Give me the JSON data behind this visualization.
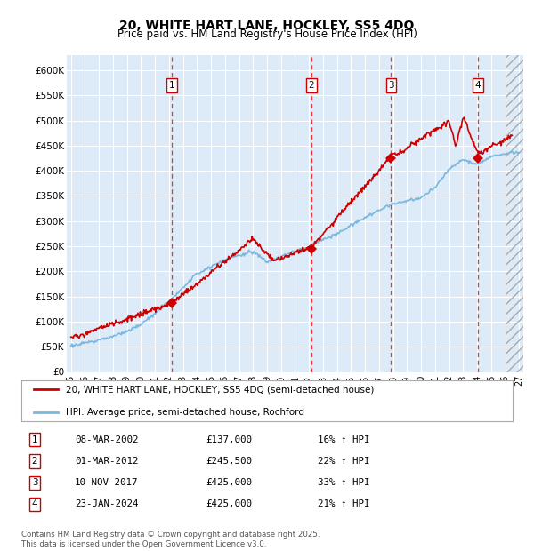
{
  "title": "20, WHITE HART LANE, HOCKLEY, SS5 4DQ",
  "subtitle": "Price paid vs. HM Land Registry's House Price Index (HPI)",
  "ylabel_ticks": [
    "£0",
    "£50K",
    "£100K",
    "£150K",
    "£200K",
    "£250K",
    "£300K",
    "£350K",
    "£400K",
    "£450K",
    "£500K",
    "£550K",
    "£600K"
  ],
  "ytick_values": [
    0,
    50000,
    100000,
    150000,
    200000,
    250000,
    300000,
    350000,
    400000,
    450000,
    500000,
    550000,
    600000
  ],
  "ylim": [
    0,
    630000
  ],
  "xlim_start": 1994.7,
  "xlim_end": 2027.3,
  "sale_dates": [
    2002.19,
    2012.17,
    2017.86,
    2024.07
  ],
  "sale_prices": [
    137000,
    245500,
    425000,
    425000
  ],
  "sale_labels": [
    "1",
    "2",
    "3",
    "4"
  ],
  "sale_hpi_pct": [
    "16% ↑ HPI",
    "22% ↑ HPI",
    "33% ↑ HPI",
    "21% ↑ HPI"
  ],
  "sale_date_strs": [
    "08-MAR-2002",
    "01-MAR-2012",
    "10-NOV-2017",
    "23-JAN-2024"
  ],
  "sale_price_strs": [
    "£137,000",
    "£245,500",
    "£425,000",
    "£425,000"
  ],
  "hpi_line_color": "#7ab8e0",
  "price_line_color": "#cc0000",
  "vline_color": "#ee3333",
  "plot_bg_color": "#ddeaf7",
  "grid_color": "#ffffff",
  "legend_label_red": "20, WHITE HART LANE, HOCKLEY, SS5 4DQ (semi-detached house)",
  "legend_label_blue": "HPI: Average price, semi-detached house, Rochford",
  "footer_text": "Contains HM Land Registry data © Crown copyright and database right 2025.\nThis data is licensed under the Open Government Licence v3.0."
}
